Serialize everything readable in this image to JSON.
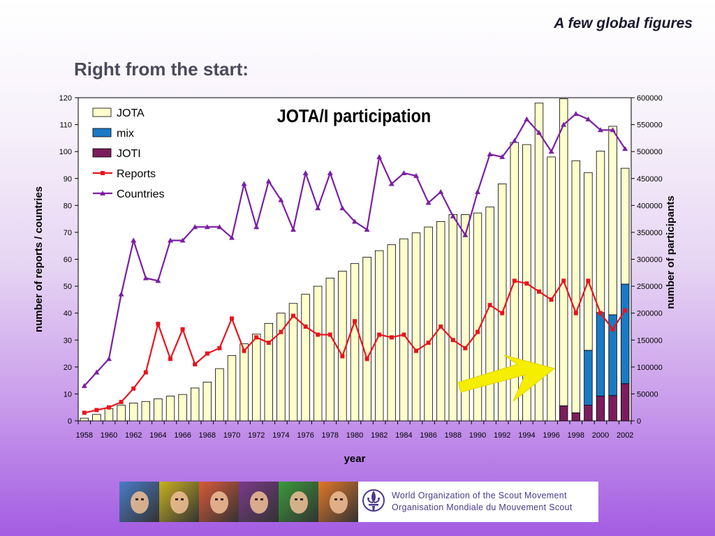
{
  "slide": {
    "tag": "A few global figures",
    "title": "Right from the start:"
  },
  "chart_data": {
    "type": "bar",
    "title": "JOTA/I participation",
    "xlabel": "year",
    "ylabel": "number of reports / countries",
    "y2label": "number of participants",
    "ylim": [
      0,
      120
    ],
    "y2lim": [
      0,
      600000
    ],
    "yticks": [
      0,
      10,
      20,
      30,
      40,
      50,
      60,
      70,
      80,
      90,
      100,
      110,
      120
    ],
    "y2ticks": [
      0,
      50000,
      100000,
      150000,
      200000,
      250000,
      300000,
      350000,
      400000,
      450000,
      500000,
      550000,
      600000
    ],
    "categories": [
      1958,
      1959,
      1960,
      1961,
      1962,
      1963,
      1964,
      1965,
      1966,
      1967,
      1968,
      1969,
      1970,
      1971,
      1972,
      1973,
      1974,
      1975,
      1976,
      1977,
      1978,
      1979,
      1980,
      1981,
      1982,
      1983,
      1984,
      1985,
      1986,
      1987,
      1988,
      1989,
      1990,
      1991,
      1992,
      1993,
      1994,
      1995,
      1996,
      1997,
      1998,
      1999,
      2000,
      2001,
      2002
    ],
    "xtick_labels": [
      "1958",
      "1960",
      "1962",
      "1964",
      "1966",
      "1968",
      "1970",
      "1972",
      "1974",
      "1976",
      "1978",
      "1980",
      "1982",
      "1984",
      "1986",
      "1988",
      "1990",
      "1992",
      "1994",
      "1996",
      "1998",
      "2000",
      "2002"
    ],
    "legend_position": "top-left",
    "grid": false,
    "series": [
      {
        "name": "JOTA",
        "kind": "stacked-bar",
        "axis": "right",
        "color": "#ffffcc",
        "values": [
          5000,
          12000,
          23000,
          29000,
          33000,
          36000,
          41000,
          46000,
          49000,
          61000,
          72000,
          97000,
          121000,
          143000,
          161000,
          181000,
          200000,
          218000,
          235000,
          250000,
          265000,
          278000,
          292000,
          304000,
          316000,
          327000,
          338000,
          349000,
          360000,
          370000,
          383000,
          383000,
          386000,
          397000,
          440000,
          517000,
          513000,
          590000,
          490000,
          570000,
          468000,
          330000,
          300000,
          350000,
          215000
        ]
      },
      {
        "name": "mix",
        "kind": "stacked-bar",
        "axis": "right",
        "color": "#1a7ac4",
        "values": [
          0,
          0,
          0,
          0,
          0,
          0,
          0,
          0,
          0,
          0,
          0,
          0,
          0,
          0,
          0,
          0,
          0,
          0,
          0,
          0,
          0,
          0,
          0,
          0,
          0,
          0,
          0,
          0,
          0,
          0,
          0,
          0,
          0,
          0,
          0,
          0,
          0,
          0,
          0,
          0,
          0,
          102000,
          155000,
          150000,
          185000
        ]
      },
      {
        "name": "JOTI",
        "kind": "stacked-bar",
        "axis": "right",
        "color": "#7b1d5c",
        "values": [
          0,
          0,
          0,
          0,
          0,
          0,
          0,
          0,
          0,
          0,
          0,
          0,
          0,
          0,
          0,
          0,
          0,
          0,
          0,
          0,
          0,
          0,
          0,
          0,
          0,
          0,
          0,
          0,
          0,
          0,
          0,
          0,
          0,
          0,
          0,
          0,
          0,
          0,
          0,
          28000,
          15000,
          29000,
          46000,
          47000,
          69000
        ]
      },
      {
        "name": "Reports",
        "kind": "line",
        "axis": "left",
        "color": "#e8141e",
        "marker": "square",
        "values": [
          3,
          4,
          5,
          7,
          12,
          18,
          36,
          23,
          34,
          21,
          25,
          27,
          38,
          26,
          31,
          29,
          33,
          39,
          35,
          32,
          32,
          24,
          37,
          23,
          32,
          31,
          32,
          26,
          29,
          35,
          30,
          27,
          33,
          43,
          40,
          52,
          51,
          48,
          45,
          52,
          40,
          52,
          40,
          34,
          41
        ]
      },
      {
        "name": "Countries",
        "kind": "line",
        "axis": "left",
        "color": "#7a1fa2",
        "marker": "triangle",
        "values": [
          13,
          18,
          23,
          47,
          67,
          53,
          52,
          67,
          67,
          72,
          72,
          72,
          68,
          88,
          72,
          89,
          82,
          71,
          92,
          79,
          92,
          79,
          74,
          71,
          98,
          88,
          92,
          91,
          81,
          85,
          76,
          69,
          85,
          99,
          98,
          104,
          112,
          107,
          100,
          110,
          114,
          112,
          108,
          108,
          101
        ]
      }
    ]
  },
  "banner": {
    "line1": "World Organization of the Scout Movement",
    "line2": "Organisation Mondiale du Mouvement Scout",
    "photos": [
      {
        "name": "photo-1",
        "color": "#4a7cc8"
      },
      {
        "name": "photo-2",
        "color": "#c8b020"
      },
      {
        "name": "photo-3",
        "color": "#d85a3a"
      },
      {
        "name": "photo-4",
        "color": "#7a3a8a"
      },
      {
        "name": "photo-5",
        "color": "#3a9a3a"
      },
      {
        "name": "photo-6",
        "color": "#e0782a"
      }
    ],
    "logo_icon": "scout-fleur-de-lis-icon",
    "logo_color": "#4b3a8c"
  },
  "decorations": {
    "arrow_color": "#f5ee00",
    "arrow_icon": "arrow-right-icon"
  }
}
